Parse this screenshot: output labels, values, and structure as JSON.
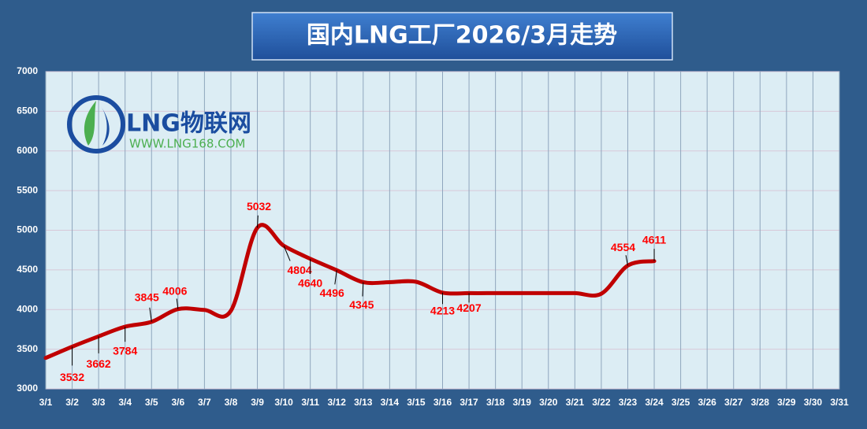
{
  "logo": {
    "name": "LNG物联网",
    "url": "WWW.LNG168.COM"
  },
  "chart_data": {
    "type": "line",
    "title": "国内LNG工厂2026/3月走势",
    "categories": [
      "3/1",
      "3/2",
      "3/3",
      "3/4",
      "3/5",
      "3/6",
      "3/7",
      "3/8",
      "3/9",
      "3/10",
      "3/11",
      "3/12",
      "3/13",
      "3/14",
      "3/15",
      "3/16",
      "3/17",
      "3/18",
      "3/19",
      "3/20",
      "3/21",
      "3/22",
      "3/23",
      "3/24",
      "3/25",
      "3/26",
      "3/27",
      "3/28",
      "3/29",
      "3/30",
      "3/31"
    ],
    "series": [
      {
        "name": "LNG",
        "color": "#c00000",
        "values": [
          3390,
          3532,
          3662,
          3784,
          3845,
          4006,
          3995,
          3985,
          5032,
          4804,
          4640,
          4496,
          4345,
          4345,
          4350,
          4213,
          4207,
          4207,
          4207,
          4207,
          4207,
          4200,
          4554,
          4611,
          null,
          null,
          null,
          null,
          null,
          null,
          null
        ],
        "show_labels": [
          false,
          true,
          true,
          true,
          true,
          true,
          false,
          false,
          true,
          true,
          true,
          true,
          true,
          false,
          false,
          true,
          true,
          false,
          false,
          false,
          false,
          false,
          true,
          true,
          false,
          false,
          false,
          false,
          false,
          false,
          false
        ]
      }
    ],
    "ylim": [
      3000,
      7000
    ],
    "yticks": [
      3000,
      3500,
      4000,
      4500,
      5000,
      5500,
      6000,
      6500,
      7000
    ],
    "grid": true
  }
}
